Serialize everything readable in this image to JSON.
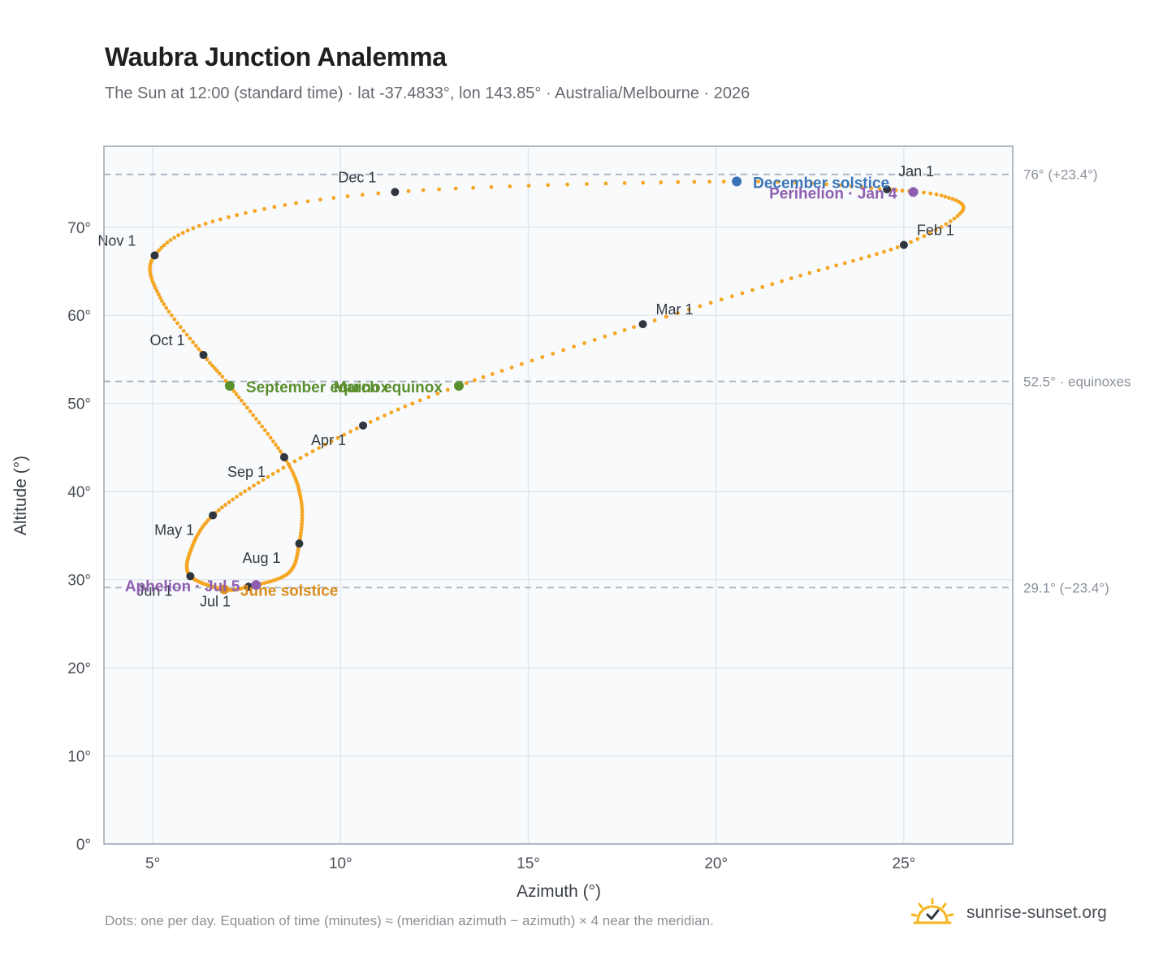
{
  "header": {
    "title": "Waubra Junction Analemma",
    "subtitle": "The Sun at 12:00 (standard time) · lat -37.4833°, lon 143.85° · Australia/Melbourne · 2026"
  },
  "footer": {
    "note": "Dots: one per day. Equation of time (minutes) ≈ (meridian azimuth − azimuth) × 4 near the meridian.",
    "brand": "sunrise-sunset.org",
    "brand_icon": "sun-logo-icon"
  },
  "colors": {
    "path": "#F5A623",
    "month_marker": "#2f3640",
    "solstice_december": "#3a74b8",
    "solstice_june": "#d98e1d",
    "equinox": "#5a8f2e",
    "apsis": "#8e5fb0",
    "reference_line": "#aab4c0",
    "plot_bg": "#f8fafc",
    "grid": "#e2e8ef"
  },
  "chart_data": {
    "type": "scatter",
    "xlabel": "Azimuth (°)",
    "ylabel": "Altitude (°)",
    "xlim": [
      3.7,
      27.9
    ],
    "ylim": [
      0,
      79.2
    ],
    "xticks": [
      5,
      10,
      15,
      20,
      25
    ],
    "xtick_labels": [
      "5°",
      "10°",
      "15°",
      "20°",
      "25°"
    ],
    "yticks": [
      0,
      10,
      20,
      30,
      40,
      50,
      60,
      70
    ],
    "ytick_labels": [
      "0°",
      "10°",
      "20°",
      "30°",
      "40°",
      "50°",
      "60°",
      "70°"
    ],
    "grid": true,
    "reference_lines": [
      {
        "y": 76,
        "label": "76° (+23.4°)"
      },
      {
        "y": 52.5,
        "label": "52.5° · equinoxes"
      },
      {
        "y": 29.1,
        "label": "29.1° (−23.4°)"
      }
    ],
    "month_markers": [
      {
        "label": "Jan 1",
        "x": 24.55,
        "y": 74.3
      },
      {
        "label": "Feb 1",
        "x": 25.0,
        "y": 68.0
      },
      {
        "label": "Mar 1",
        "x": 18.05,
        "y": 59.0
      },
      {
        "label": "Apr 1",
        "x": 10.6,
        "y": 47.5
      },
      {
        "label": "May 1",
        "x": 6.6,
        "y": 37.3
      },
      {
        "label": "Jun 1",
        "x": 6.0,
        "y": 30.4
      },
      {
        "label": "Jul 1",
        "x": 7.55,
        "y": 29.2
      },
      {
        "label": "Aug 1",
        "x": 8.9,
        "y": 34.1
      },
      {
        "label": "Sep 1",
        "x": 8.5,
        "y": 43.9
      },
      {
        "label": "Oct 1",
        "x": 6.35,
        "y": 55.5
      },
      {
        "label": "Nov 1",
        "x": 5.05,
        "y": 66.8
      },
      {
        "label": "Dec 1",
        "x": 11.45,
        "y": 74.0
      }
    ],
    "events": [
      {
        "label": "December solstice",
        "x": 20.55,
        "y": 75.2,
        "kind": "solstice_december"
      },
      {
        "label": "Perihelion · Jan 4",
        "x": 25.25,
        "y": 74.0,
        "kind": "apsis"
      },
      {
        "label": "March equinox",
        "x": 13.15,
        "y": 52.0,
        "kind": "equinox"
      },
      {
        "label": "September equinox",
        "x": 7.05,
        "y": 52.0,
        "kind": "equinox"
      },
      {
        "label": "June solstice",
        "x": 6.9,
        "y": 28.9,
        "kind": "solstice_june"
      },
      {
        "label": "Aphelion · Jul 5",
        "x": 7.75,
        "y": 29.4,
        "kind": "apsis"
      }
    ],
    "path_control_points": [
      {
        "day": 1,
        "x": 24.55,
        "y": 74.3
      },
      {
        "day": 10,
        "x": 26.0,
        "y": 73.6
      },
      {
        "day": 20,
        "x": 26.55,
        "y": 71.8
      },
      {
        "day": 32,
        "x": 25.0,
        "y": 68.0
      },
      {
        "day": 46,
        "x": 22.0,
        "y": 64.2
      },
      {
        "day": 60,
        "x": 18.05,
        "y": 59.0
      },
      {
        "day": 79,
        "x": 13.15,
        "y": 52.0
      },
      {
        "day": 91,
        "x": 10.6,
        "y": 47.5
      },
      {
        "day": 106,
        "x": 8.2,
        "y": 42.0
      },
      {
        "day": 121,
        "x": 6.6,
        "y": 37.3
      },
      {
        "day": 137,
        "x": 6.0,
        "y": 33.2
      },
      {
        "day": 152,
        "x": 6.0,
        "y": 30.4
      },
      {
        "day": 172,
        "x": 6.9,
        "y": 28.9
      },
      {
        "day": 182,
        "x": 7.55,
        "y": 29.2
      },
      {
        "day": 197,
        "x": 8.6,
        "y": 30.7
      },
      {
        "day": 213,
        "x": 8.9,
        "y": 34.1
      },
      {
        "day": 228,
        "x": 8.95,
        "y": 39.0
      },
      {
        "day": 244,
        "x": 8.5,
        "y": 43.9
      },
      {
        "day": 265,
        "x": 7.05,
        "y": 52.0
      },
      {
        "day": 274,
        "x": 6.35,
        "y": 55.5
      },
      {
        "day": 290,
        "x": 5.2,
        "y": 62.0
      },
      {
        "day": 305,
        "x": 5.05,
        "y": 66.8
      },
      {
        "day": 320,
        "x": 6.8,
        "y": 70.9
      },
      {
        "day": 335,
        "x": 11.45,
        "y": 74.0
      },
      {
        "day": 355,
        "x": 20.55,
        "y": 75.2
      },
      {
        "day": 366,
        "x": 24.55,
        "y": 74.3
      }
    ]
  }
}
